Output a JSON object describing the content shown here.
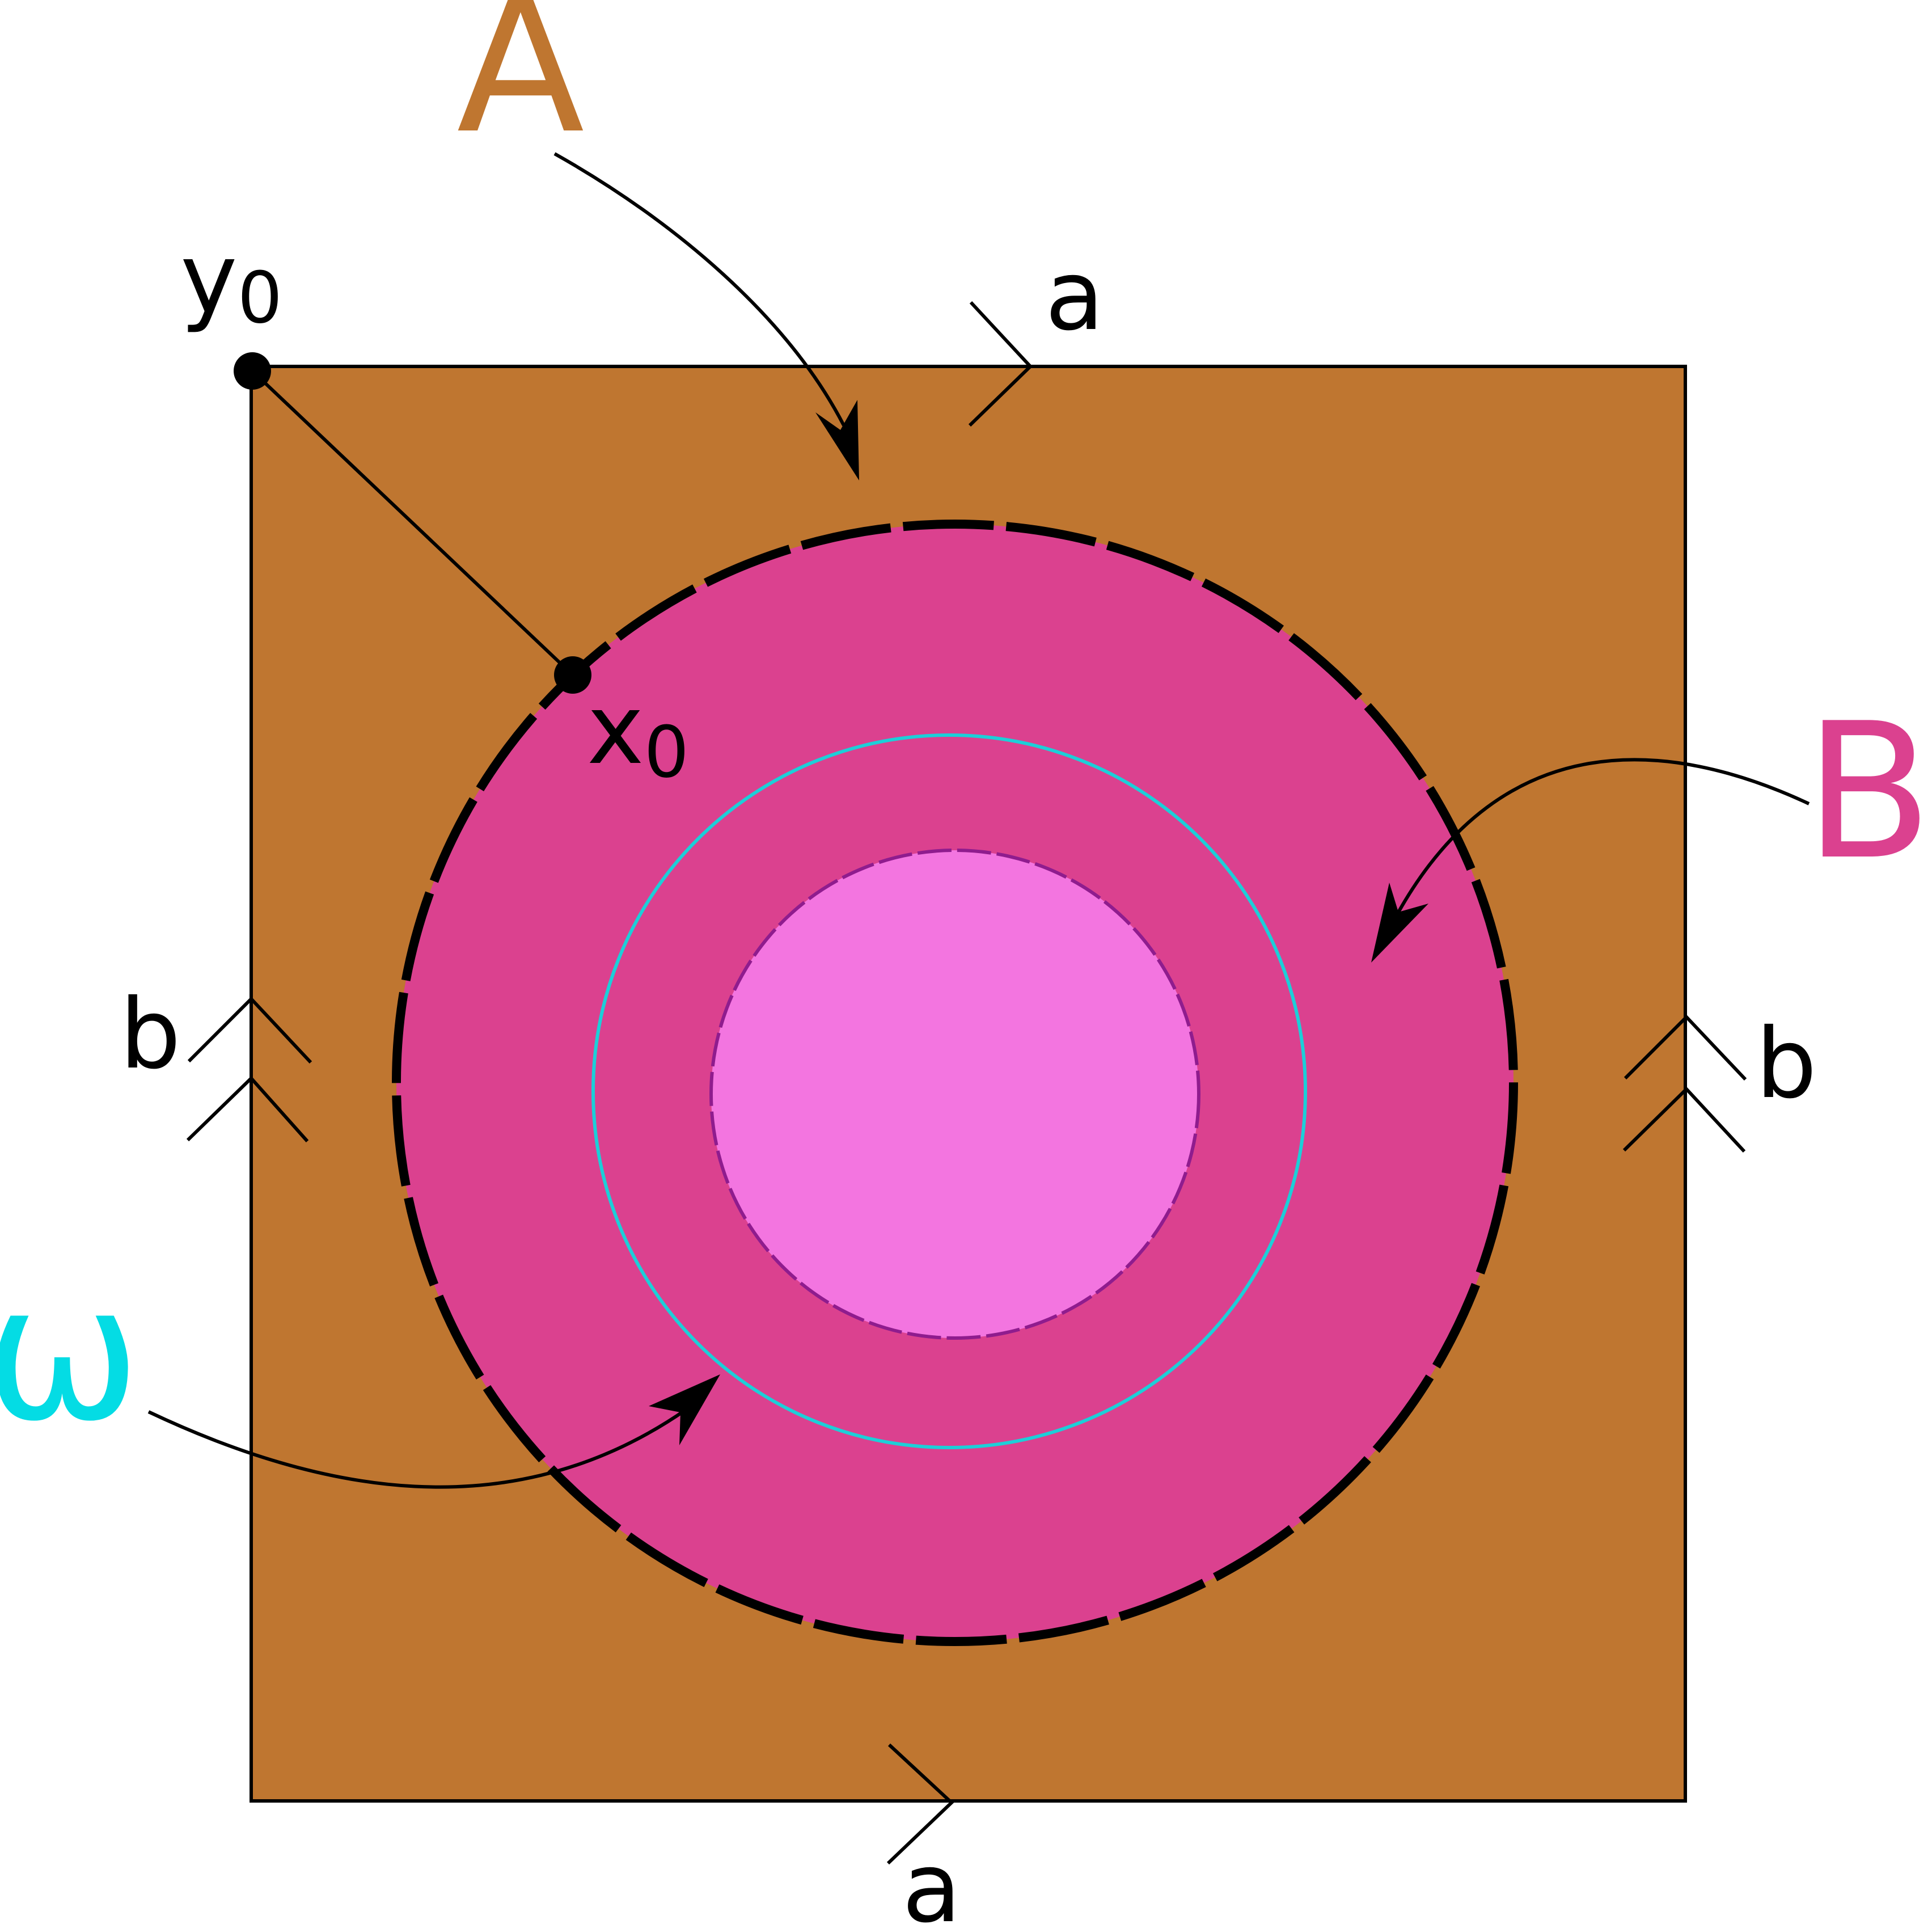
{
  "labels": {
    "A": "A",
    "B": "B",
    "omega": "ω",
    "y0_base": "y",
    "y0_sub": "0",
    "x0_base": "x",
    "x0_sub": "0",
    "a_top": "a",
    "a_bottom": "a",
    "b_left": "b",
    "b_right": "b"
  },
  "colors": {
    "square_fill": "#bf7630",
    "annulus_fill": "#db418f",
    "inner_disk_fill": "#f375e0",
    "omega_circle": "#1ccfd8",
    "inner_dashed": "#8f1c8e",
    "label_A": "#bf7630",
    "label_B": "#db418f",
    "label_omega": "#04dce4",
    "ink": "#000000"
  }
}
